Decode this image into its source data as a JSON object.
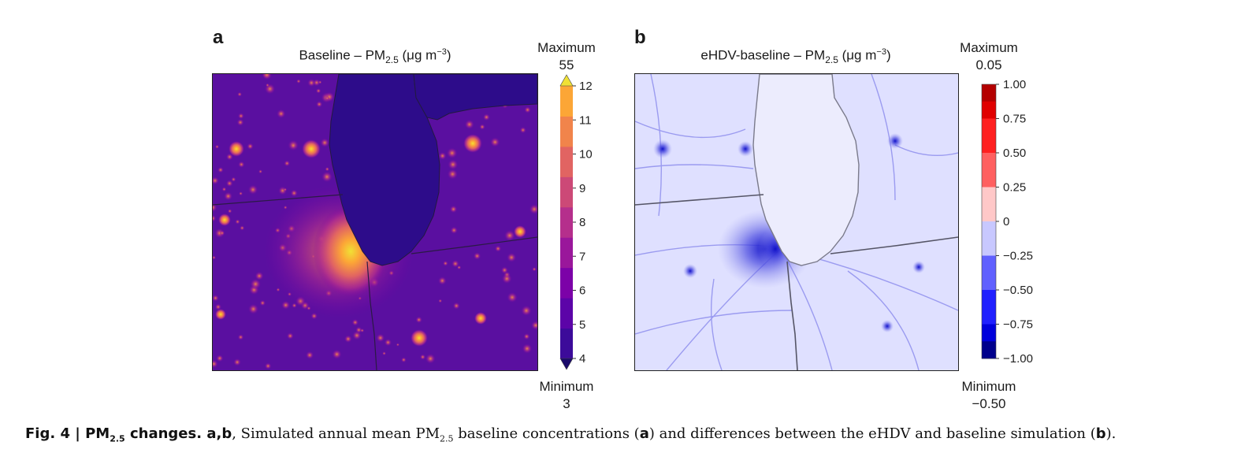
{
  "chart_data": [
    {
      "type": "heatmap",
      "panel": "a",
      "title": {
        "prefix": "Baseline – PM",
        "sub": "2.5",
        "mid": " (μg m",
        "sup": "−3",
        "suffix": ")"
      },
      "colorbar": {
        "max_label": "Maximum",
        "max_value": "55",
        "min_label": "Minimum",
        "min_value": "3",
        "ticks": [
          "4",
          "5",
          "6",
          "7",
          "8",
          "9",
          "10",
          "11",
          "12"
        ],
        "range": [
          4,
          12
        ],
        "extend": "both",
        "colors": [
          "#3c0b9a",
          "#5c04a8",
          "#7c02a8",
          "#9a179b",
          "#b52f8c",
          "#cc4977",
          "#e16462",
          "#f1844b",
          "#fca636",
          "#f0e135"
        ]
      }
    },
    {
      "type": "heatmap",
      "panel": "b",
      "title": {
        "prefix": "eHDV-baseline – PM",
        "sub": "2.5",
        "mid": " (μg m",
        "sup": "−3",
        "suffix": ")"
      },
      "colorbar": {
        "max_label": "Maximum",
        "max_value": "0.05",
        "min_label": "Minimum",
        "min_value": "−0.50",
        "ticks": [
          "1.00",
          "0.75",
          "0.50",
          "0.25",
          "0",
          "−0.25",
          "−0.50",
          "−0.75",
          "−1.00"
        ],
        "range": [
          -1,
          1
        ],
        "colors": [
          "#b40000",
          "#e00000",
          "#ff2020",
          "#ff6060",
          "#ffc8c8",
          "#c8c8ff",
          "#6060ff",
          "#2020ff",
          "#0000dc",
          "#00008c"
        ]
      }
    }
  ],
  "caption": {
    "fig": "Fig. 4 | PM",
    "fig_sub": "2.5",
    "fig_rest": " changes. ",
    "ab": "a,b",
    "t1": ", Simulated annual mean PM",
    "t1_sub": "2.5",
    "t2": " baseline concentrations (",
    "a": "a",
    "t3": ") and differences between the eHDV and baseline simulation (",
    "b": "b",
    "t4": ")."
  },
  "colors": {
    "map_a_background": "#5a0fa0",
    "map_a_lake": "#2d0c8a",
    "map_b_background": "#dfe0ff",
    "map_b_lake": "#ececfd"
  }
}
